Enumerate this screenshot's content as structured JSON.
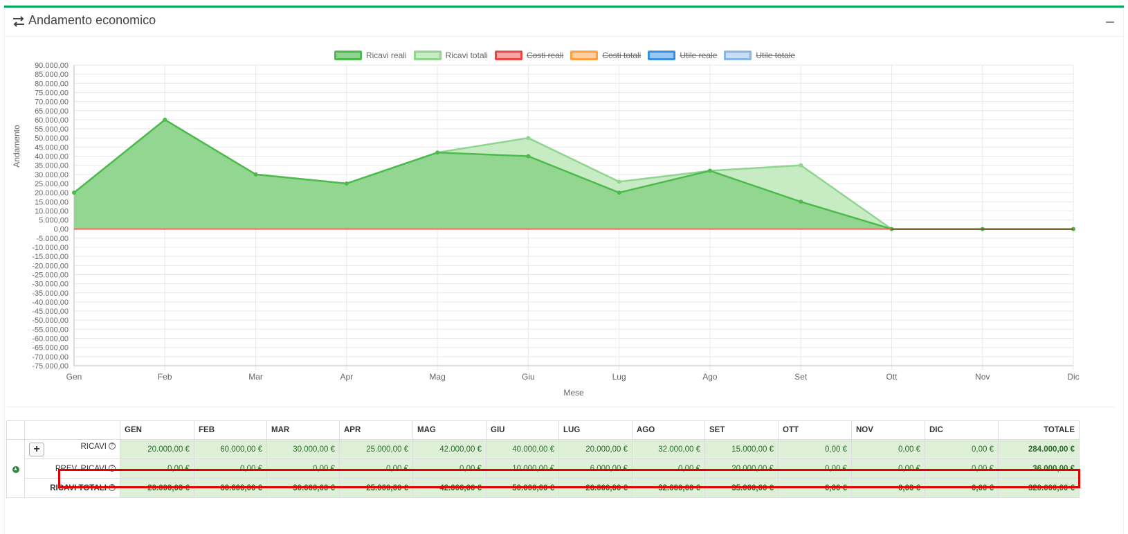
{
  "header": {
    "title": "Andamento economico"
  },
  "legend": [
    {
      "label": "Ricavi reali",
      "fill": "#8fd58f",
      "border": "#4cbb4c",
      "hidden": false
    },
    {
      "label": "Ricavi totali",
      "fill": "#c7ebc3",
      "border": "#8fd58f",
      "hidden": false
    },
    {
      "label": "Costi reali",
      "fill": "#f5a3a3",
      "border": "#f04545",
      "hidden": true
    },
    {
      "label": "Costi totali",
      "fill": "#ffcfa0",
      "border": "#ff9f40",
      "hidden": true
    },
    {
      "label": "Utile reale",
      "fill": "#9ac8f5",
      "border": "#3b8fe0",
      "hidden": true
    },
    {
      "label": "Utile totale",
      "fill": "#c8def5",
      "border": "#86b6e8",
      "hidden": true
    }
  ],
  "chart_data": {
    "type": "area",
    "categories": [
      "Gen",
      "Feb",
      "Mar",
      "Apr",
      "Mag",
      "Giu",
      "Lug",
      "Ago",
      "Set",
      "Ott",
      "Nov",
      "Dic"
    ],
    "series": [
      {
        "name": "Ricavi reali",
        "values": [
          20000,
          60000,
          30000,
          25000,
          42000,
          40000,
          20000,
          32000,
          15000,
          0,
          0,
          0
        ],
        "color": "#4cbb4c",
        "fill": "#8fd58f"
      },
      {
        "name": "Ricavi totali",
        "values": [
          20000,
          60000,
          30000,
          25000,
          42000,
          50000,
          26000,
          32000,
          35000,
          0,
          0,
          0
        ],
        "color": "#8fd58f",
        "fill": "#c7ebc3"
      }
    ],
    "xlabel": "Mese",
    "ylabel": "Andamento",
    "ylim": [
      -75000,
      90000
    ],
    "ystep": 5000,
    "yticks": [
      "90.000,00",
      "85.000,00",
      "80.000,00",
      "75.000,00",
      "70.000,00",
      "65.000,00",
      "60.000,00",
      "55.000,00",
      "50.000,00",
      "45.000,00",
      "40.000,00",
      "35.000,00",
      "30.000,00",
      "25.000,00",
      "20.000,00",
      "15.000,00",
      "10.000,00",
      "5.000,00",
      "0,00",
      "-5.000,00",
      "-10.000,00",
      "-15.000,00",
      "-20.000,00",
      "-25.000,00",
      "-30.000,00",
      "-35.000,00",
      "-40.000,00",
      "-45.000,00",
      "-50.000,00",
      "-55.000,00",
      "-60.000,00",
      "-65.000,00",
      "-70.000,00",
      "-75.000,00"
    ],
    "grid": true,
    "legend_position": "top"
  },
  "table": {
    "headers": [
      "GEN",
      "FEB",
      "MAR",
      "APR",
      "MAG",
      "GIU",
      "LUG",
      "AGO",
      "SET",
      "OTT",
      "NOV",
      "DIC"
    ],
    "total_header": "TOTALE",
    "rows": [
      {
        "label": "RICAVI",
        "values": [
          "20.000,00 €",
          "60.000,00 €",
          "30.000,00 €",
          "25.000,00 €",
          "42.000,00 €",
          "40.000,00 €",
          "20.000,00 €",
          "32.000,00 €",
          "15.000,00 €",
          "0,00 €",
          "0,00 €",
          "0,00 €"
        ],
        "total": "284.000,00 €"
      },
      {
        "label": "PREV. RICAVI",
        "values": [
          "0,00 €",
          "0,00 €",
          "0,00 €",
          "0,00 €",
          "0,00 €",
          "10.000,00 €",
          "6.000,00 €",
          "0,00 €",
          "20.000,00 €",
          "0,00 €",
          "0,00 €",
          "0,00 €"
        ],
        "total": "36.000,00 €"
      },
      {
        "label": "RICAVI TOTALI",
        "values": [
          "20.000,00 €",
          "60.000,00 €",
          "30.000,00 €",
          "25.000,00 €",
          "42.000,00 €",
          "50.000,00 €",
          "26.000,00 €",
          "32.000,00 €",
          "35.000,00 €",
          "0,00 €",
          "0,00 €",
          "0,00 €"
        ],
        "total": "320.000,00 €"
      }
    ]
  }
}
